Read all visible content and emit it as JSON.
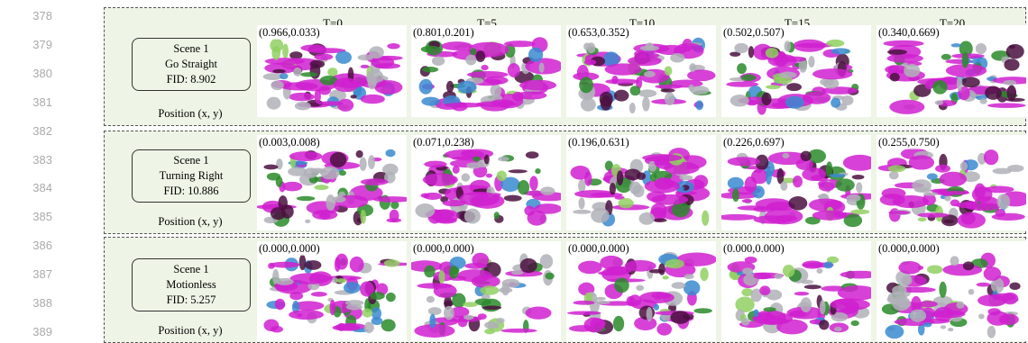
{
  "line_numbers": [
    "378",
    "379",
    "380",
    "381",
    "382",
    "383",
    "384",
    "385",
    "386",
    "387",
    "388",
    "389"
  ],
  "headers": [
    "T=0",
    "T=5",
    "T=10",
    "T=15",
    "T=20"
  ],
  "rows": [
    {
      "scene": "Scene 1",
      "action": "Go Straight",
      "fid": "FID: 8.902",
      "position_label": "Position  (x, y)",
      "coords": [
        "(0.966,0.033)",
        "(0.801,0.201)",
        "(0.653,0.352)",
        "(0.502,0.507)",
        "(0.340,0.669)"
      ]
    },
    {
      "scene": "Scene 1",
      "action": "Turning Right",
      "fid": "FID: 10.886",
      "position_label": "Position  (x, y)",
      "coords": [
        "(0.003,0.008)",
        "(0.071,0.238)",
        "(0.196,0.631)",
        "(0.226,0.697)",
        "(0.255,0.750)"
      ]
    },
    {
      "scene": "Scene 1",
      "action": "Motionless",
      "fid": "FID: 5.257",
      "position_label": "Position  (x, y)",
      "coords": [
        "(0.000,0.000)",
        "(0.000,0.000)",
        "(0.000,0.000)",
        "(0.000,0.000)",
        "(0.000,0.000)"
      ]
    }
  ]
}
